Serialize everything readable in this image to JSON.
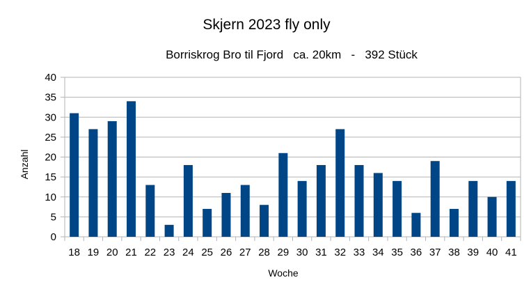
{
  "chart_data": {
    "type": "bar",
    "title": "Skjern 2023 fly only",
    "subtitle": "Borriskrog Bro til Fjord   ca. 20km   -   392 Stück",
    "xlabel": "Woche",
    "ylabel": "Anzahl",
    "categories": [
      "18",
      "19",
      "20",
      "21",
      "22",
      "23",
      "24",
      "25",
      "26",
      "27",
      "28",
      "29",
      "30",
      "31",
      "32",
      "33",
      "34",
      "35",
      "36",
      "37",
      "38",
      "39",
      "40",
      "41"
    ],
    "values": [
      31,
      27,
      29,
      34,
      13,
      3,
      18,
      7,
      11,
      13,
      8,
      21,
      14,
      18,
      27,
      18,
      16,
      14,
      6,
      19,
      7,
      14,
      10,
      14
    ],
    "ylim": [
      0,
      40
    ],
    "yticks": [
      0,
      5,
      10,
      15,
      20,
      25,
      30,
      35,
      40
    ],
    "grid": true,
    "legend": "none",
    "colors": {
      "bar": "#004586",
      "grid": "#b3b3b3",
      "axis": "#b3b3b3"
    }
  }
}
